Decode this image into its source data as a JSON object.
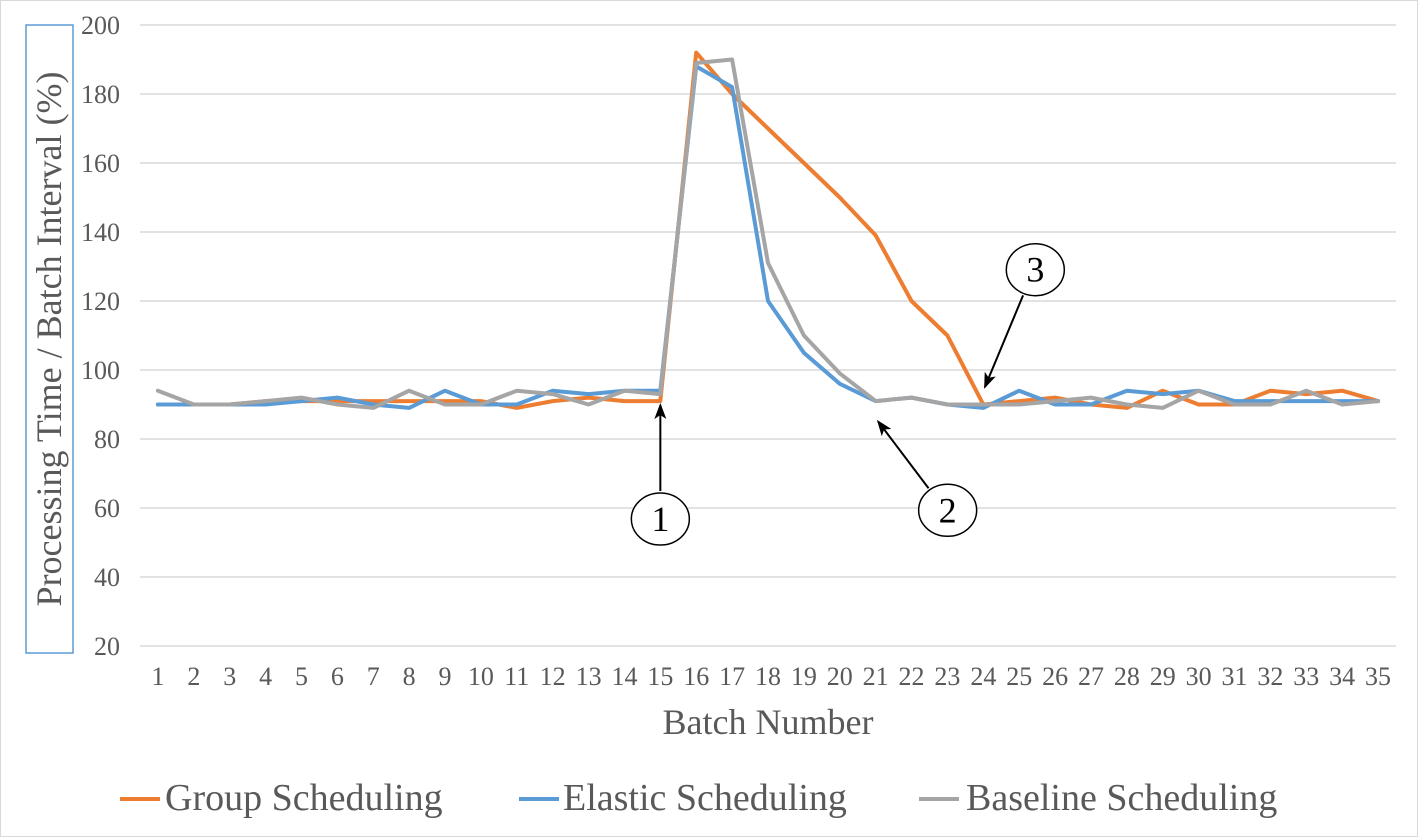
{
  "chart_data": {
    "type": "line",
    "title": "",
    "xlabel": "Batch Number",
    "ylabel": "Processing Time / Batch Interval (%)",
    "x": [
      1,
      2,
      3,
      4,
      5,
      6,
      7,
      8,
      9,
      10,
      11,
      12,
      13,
      14,
      15,
      16,
      17,
      18,
      19,
      20,
      21,
      22,
      23,
      24,
      25,
      26,
      27,
      28,
      29,
      30,
      31,
      32,
      33,
      34,
      35
    ],
    "ylim": [
      20,
      200
    ],
    "yticks": [
      20,
      40,
      60,
      80,
      100,
      120,
      140,
      160,
      180,
      200
    ],
    "grid": true,
    "legend": "bottom",
    "series": [
      {
        "name": "Group Scheduling",
        "color": "#ed7d31",
        "values": [
          90,
          90,
          90,
          91,
          91,
          91,
          91,
          91,
          91,
          91,
          89,
          91,
          92,
          91,
          91,
          192,
          180,
          170,
          160,
          150,
          139,
          120,
          110,
          90,
          91,
          92,
          90,
          89,
          94,
          90,
          90,
          94,
          93,
          94,
          91
        ]
      },
      {
        "name": "Elastic Scheduling",
        "color": "#5b9bd5",
        "values": [
          90,
          90,
          90,
          90,
          91,
          92,
          90,
          89,
          94,
          90,
          90,
          94,
          93,
          94,
          94,
          188,
          182,
          120,
          105,
          96,
          91,
          92,
          90,
          89,
          94,
          90,
          90,
          94,
          93,
          94,
          91,
          91,
          91,
          91,
          91
        ]
      },
      {
        "name": "Baseline Scheduling",
        "color": "#a5a5a5",
        "values": [
          94,
          90,
          90,
          91,
          92,
          90,
          89,
          94,
          90,
          90,
          94,
          93,
          90,
          94,
          93,
          189,
          190,
          131,
          110,
          99,
          91,
          92,
          90,
          90,
          90,
          91,
          92,
          90,
          89,
          94,
          90,
          90,
          94,
          90,
          91
        ]
      }
    ],
    "annotations": [
      {
        "label": "1",
        "target_x": 15,
        "target_y": 91
      },
      {
        "label": "2",
        "target_x": 21,
        "target_y": 86
      },
      {
        "label": "3",
        "target_x": 24,
        "target_y": 94
      }
    ]
  }
}
